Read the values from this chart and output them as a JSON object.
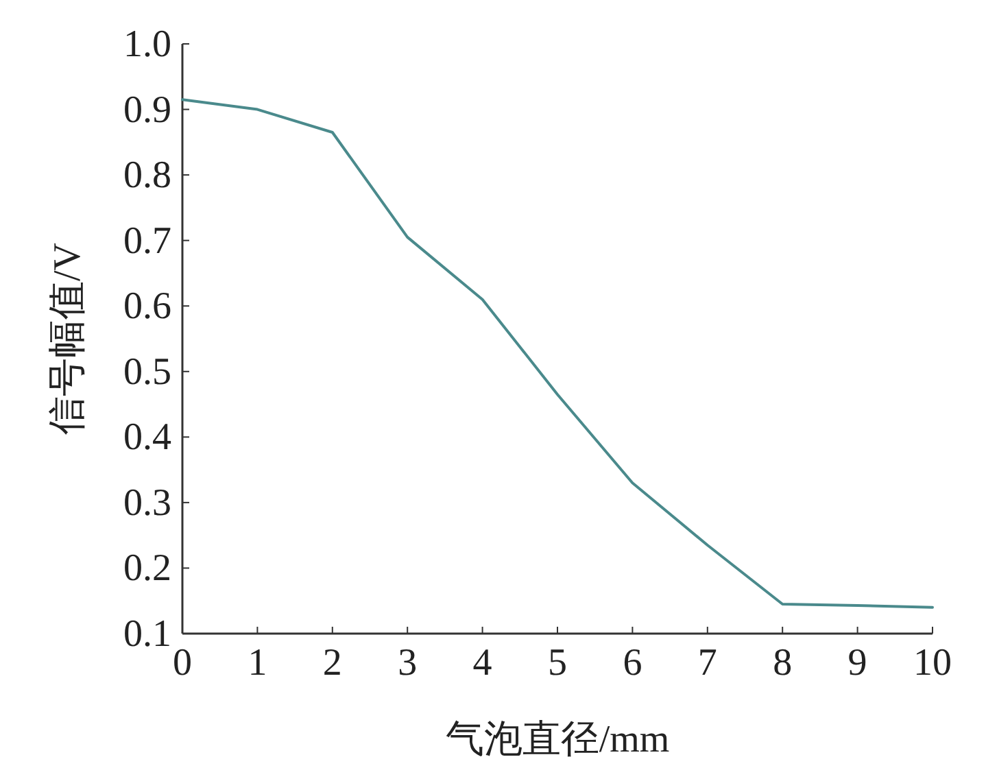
{
  "chart_data": {
    "type": "line",
    "xlabel": "气泡直径/mm",
    "ylabel": "信号幅值/V",
    "x": [
      0,
      1,
      2,
      3,
      4,
      5,
      6,
      7,
      8,
      9,
      10
    ],
    "series": [
      {
        "color": "#4a8a8c",
        "values": [
          0.915,
          0.9,
          0.865,
          0.705,
          0.61,
          0.465,
          0.33,
          0.235,
          0.145,
          0.143,
          0.14
        ]
      }
    ],
    "xlim": [
      0,
      10
    ],
    "ylim": [
      0.1,
      1.0
    ],
    "xticks": [
      0,
      1,
      2,
      3,
      4,
      5,
      6,
      7,
      8,
      9,
      10
    ],
    "yticks": [
      0.1,
      0.2,
      0.3,
      0.4,
      0.5,
      0.6,
      0.7,
      0.8,
      0.9,
      {
        "value": 1.0,
        "label": "1.0"
      }
    ],
    "grid": false,
    "marker": "none",
    "line_style": "solid"
  }
}
